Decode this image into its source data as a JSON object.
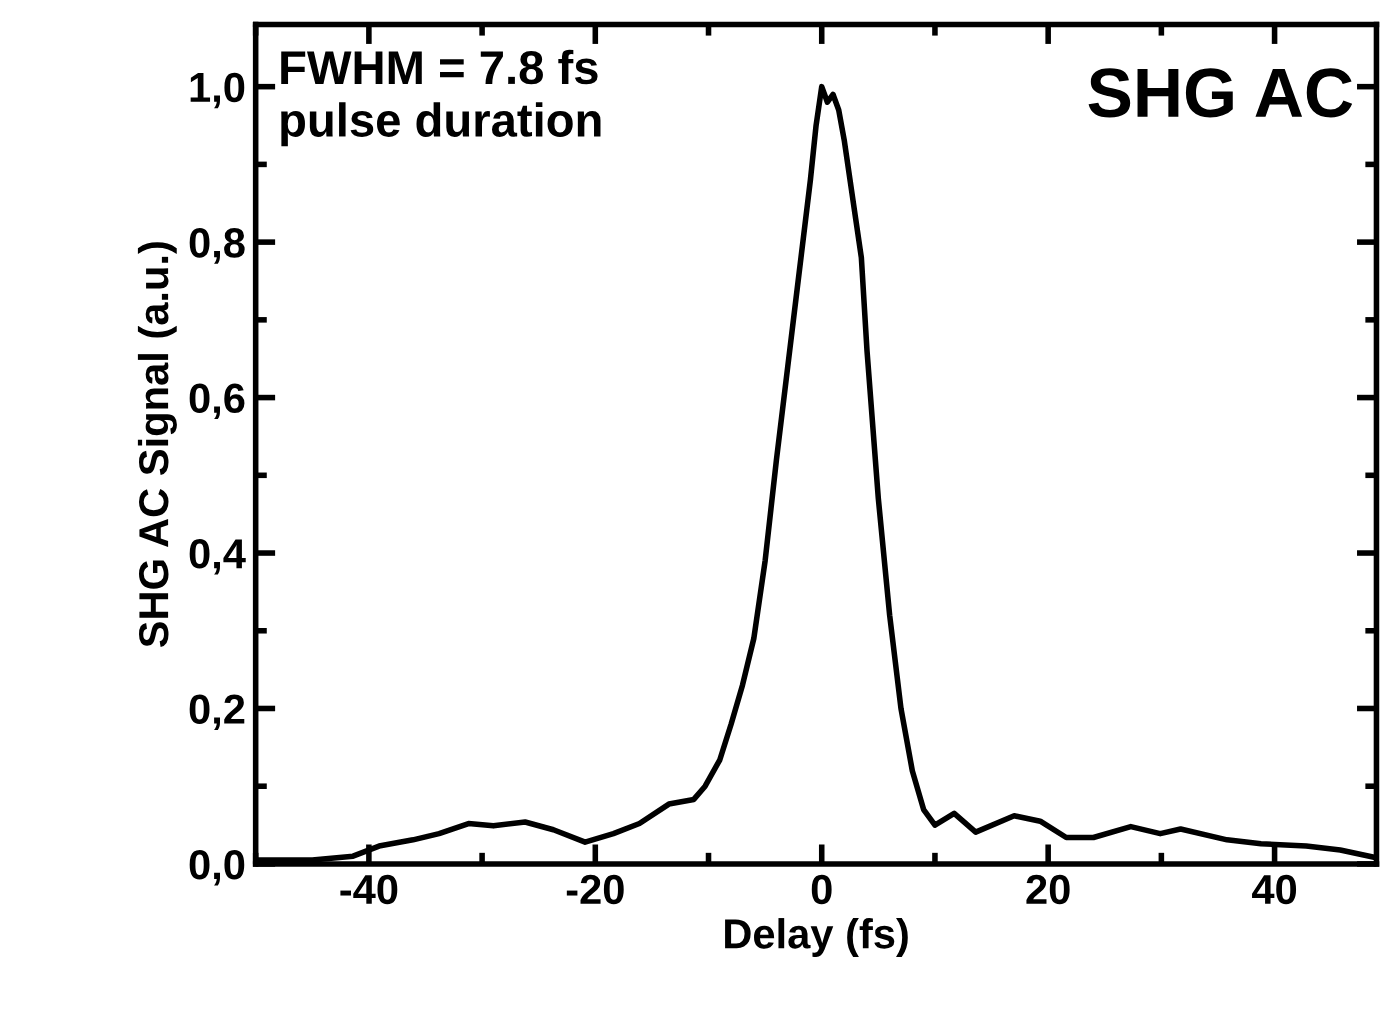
{
  "chart_data": {
    "type": "line",
    "xlabel": "Delay (fs)",
    "ylabel": "SHG AC Signal (a.u.)",
    "annotations": [
      "FWHM = 7.8 fs\npulse duration",
      "SHG AC"
    ],
    "series": [
      {
        "color": "#000000",
        "x": [
          -49.7,
          -45,
          -41.4,
          -39.1,
          -36.1,
          -33.8,
          -31.2,
          -29.0,
          -26.2,
          -23.7,
          -20.9,
          -18.4,
          -16.1,
          -13.5,
          -11.3,
          -10.3,
          -9,
          -8,
          -7,
          -6,
          -5,
          -4,
          -3,
          -2,
          -1,
          -0.5,
          0,
          0.5,
          1,
          1.5,
          2,
          3,
          3.5,
          4,
          5,
          6,
          7,
          8,
          9,
          10,
          11.7,
          13.6,
          17,
          19.3,
          21.6,
          24.0,
          27.3,
          29.9,
          31.7,
          35.8,
          38.8,
          42.8,
          45.8,
          49
        ],
        "values": [
          0.005,
          0.005,
          0.01,
          0.023,
          0.031,
          0.039,
          0.052,
          0.049,
          0.054,
          0.044,
          0.028,
          0.039,
          0.052,
          0.077,
          0.083,
          0.1,
          0.134,
          0.18,
          0.23,
          0.29,
          0.39,
          0.52,
          0.64,
          0.76,
          0.88,
          0.95,
          1.0,
          0.98,
          0.99,
          0.97,
          0.93,
          0.83,
          0.78,
          0.66,
          0.47,
          0.32,
          0.2,
          0.12,
          0.07,
          0.05,
          0.065,
          0.041,
          0.062,
          0.055,
          0.034,
          0.034,
          0.048,
          0.039,
          0.045,
          0.031,
          0.026,
          0.023,
          0.018,
          0.008
        ]
      }
    ],
    "xlim": [
      -50,
      49
    ],
    "ylim": [
      0,
      1.08
    ],
    "xticks": [
      -40,
      -20,
      0,
      20,
      40
    ],
    "yticks": [
      {
        "value": 0,
        "label": "0,0"
      },
      {
        "value": 0.2,
        "label": "0,2"
      },
      {
        "value": 0.4,
        "label": "0,4"
      },
      {
        "value": 0.6,
        "label": "0,6"
      },
      {
        "value": 0.8,
        "label": "0,8"
      },
      {
        "value": 1.0,
        "label": "1,0"
      }
    ],
    "grid": false,
    "legend": false,
    "marker": "none",
    "line_style": "solid"
  }
}
